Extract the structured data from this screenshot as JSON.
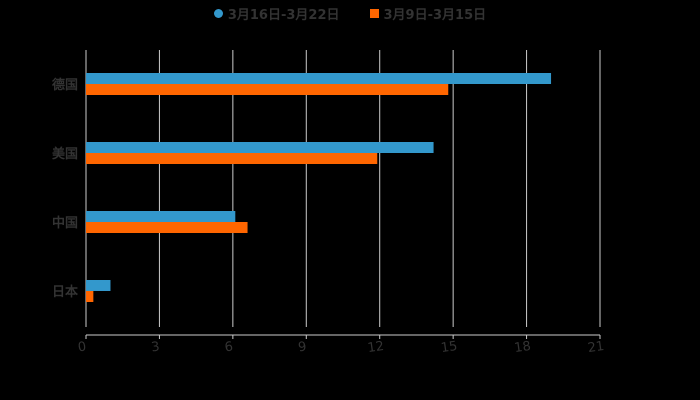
{
  "chart_data": {
    "type": "bar",
    "orientation": "horizontal",
    "title": "",
    "categories": [
      "德国",
      "美国",
      "中国",
      "日本"
    ],
    "series": [
      {
        "name": "3月16日-3月22日",
        "color": "#3398cc",
        "values": [
          19.0,
          14.2,
          6.1,
          1.0
        ]
      },
      {
        "name": "3月9日-3月15日",
        "color": "#ff6600",
        "values": [
          14.8,
          11.9,
          6.6,
          0.3
        ]
      }
    ],
    "xlabel": "",
    "ylabel": "",
    "xlim": [
      0,
      21
    ],
    "xticks": [
      "0",
      "3",
      "6",
      "9",
      "12",
      "15",
      "18",
      "21"
    ],
    "grid": true,
    "legend_position": "top"
  }
}
